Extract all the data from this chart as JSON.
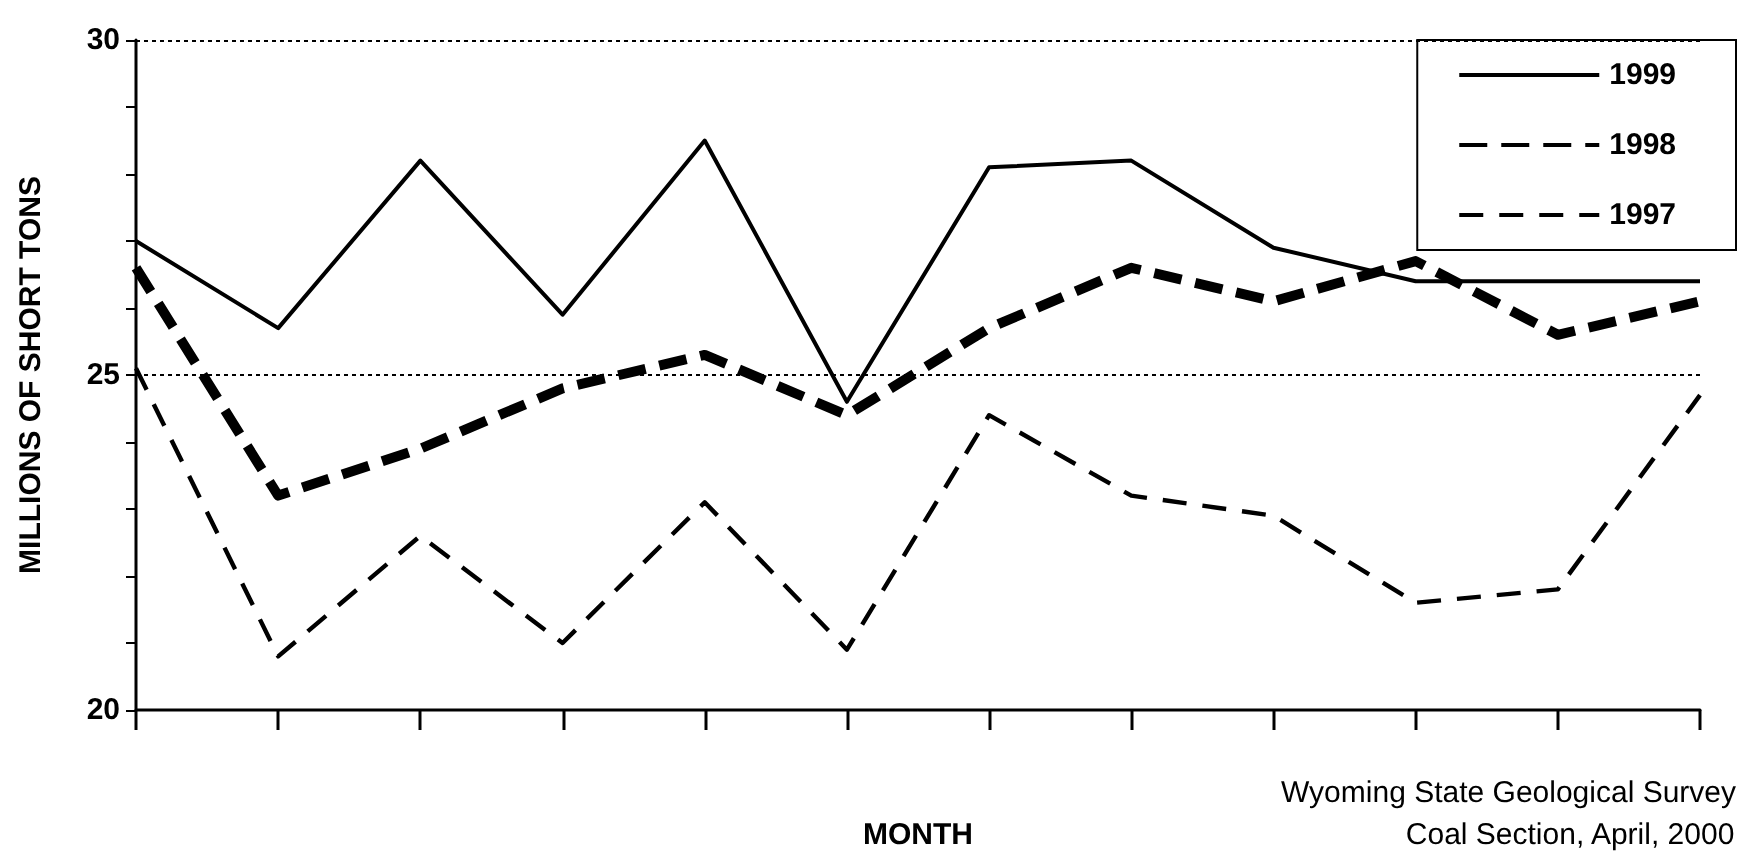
{
  "chart_data": {
    "type": "line",
    "xlabel": "MONTH",
    "ylabel": "MILLIONS OF SHORT TONS",
    "annotations": [
      "Wyoming State Geological Survey",
      "Coal Section, April, 2000"
    ],
    "categories": [
      null,
      null,
      null,
      null,
      null,
      null,
      null,
      null,
      null,
      null,
      null,
      null
    ],
    "series": [
      {
        "name": "1999",
        "color": "#000000",
        "line_style": "solid",
        "values": [
          27.0,
          25.7,
          28.2,
          25.9,
          28.5,
          24.6,
          28.1,
          28.2,
          26.9,
          26.4,
          26.4,
          26.4
        ]
      },
      {
        "name": "1998",
        "color": "#000000",
        "line_style": "dashed",
        "values": [
          26.6,
          23.2,
          23.9,
          24.8,
          25.3,
          24.4,
          25.7,
          26.6,
          26.1,
          26.7,
          25.6,
          26.1
        ]
      },
      {
        "name": "1997",
        "color": "#000000",
        "line_style": "dashed",
        "values": [
          25.1,
          20.8,
          22.6,
          21.0,
          23.1,
          20.9,
          24.4,
          23.2,
          22.9,
          21.6,
          21.8,
          24.7
        ]
      }
    ],
    "ylim": [
      20,
      30
    ],
    "yticks": [
      20,
      {
        "value": 21,
        "label": null
      },
      {
        "value": 22,
        "label": null
      },
      {
        "value": 23,
        "label": null
      },
      {
        "value": 24,
        "label": null
      },
      25,
      {
        "value": 26,
        "label": null
      },
      {
        "value": 27,
        "label": null
      },
      {
        "value": 28,
        "label": null
      },
      {
        "value": 29,
        "label": null
      },
      30
    ],
    "grid": "y",
    "legend": "top right",
    "marker": "none"
  }
}
